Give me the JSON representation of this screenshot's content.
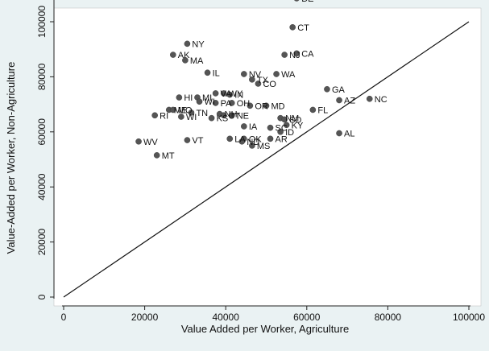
{
  "chart_data": {
    "type": "scatter",
    "title": "",
    "xlabel": "Value Added per Worker, Agriculture",
    "ylabel": "Value-Added per Worker, Non-Agriculture",
    "xlim": [
      0,
      100000
    ],
    "ylim": [
      0,
      110000
    ],
    "xticks": [
      0,
      20000,
      40000,
      60000,
      80000,
      100000
    ],
    "xtick_labels": [
      "0",
      "20000",
      "40000",
      "60000",
      "80000",
      "100000"
    ],
    "yticks": [
      0,
      20000,
      40000,
      60000,
      80000,
      100000
    ],
    "ytick_labels": [
      "0",
      "20000",
      "40000",
      "60000",
      "80000",
      "100000"
    ],
    "grid": false,
    "reference_line": {
      "from": [
        0,
        0
      ],
      "to": [
        100000,
        100000
      ]
    },
    "points": [
      {
        "label": "DE",
        "x": 57500,
        "y": 108500
      },
      {
        "label": "CT",
        "x": 56500,
        "y": 98000
      },
      {
        "label": "NY",
        "x": 30500,
        "y": 92000
      },
      {
        "label": "AK",
        "x": 27000,
        "y": 88000
      },
      {
        "label": "MA",
        "x": 30000,
        "y": 86000
      },
      {
        "label": "NJ",
        "x": 54500,
        "y": 88000
      },
      {
        "label": "CA",
        "x": 57500,
        "y": 88500
      },
      {
        "label": "IL",
        "x": 35500,
        "y": 81500
      },
      {
        "label": "NV",
        "x": 44500,
        "y": 81000
      },
      {
        "label": "WA",
        "x": 52500,
        "y": 81000
      },
      {
        "label": "TX",
        "x": 46500,
        "y": 79000
      },
      {
        "label": "CO",
        "x": 48000,
        "y": 77500
      },
      {
        "label": "GA",
        "x": 65000,
        "y": 75500
      },
      {
        "label": "HI",
        "x": 28500,
        "y": 72500
      },
      {
        "label": "MI",
        "x": 33000,
        "y": 72500
      },
      {
        "label": "VA",
        "x": 37500,
        "y": 74000
      },
      {
        "label": "WY",
        "x": 39500,
        "y": 74000
      },
      {
        "label": "IN",
        "x": 41000,
        "y": 73500
      },
      {
        "label": "WI",
        "x": 33500,
        "y": 71000
      },
      {
        "label": "PA",
        "x": 37500,
        "y": 70500
      },
      {
        "label": "OH",
        "x": 41500,
        "y": 70500
      },
      {
        "label": "OR",
        "x": 46000,
        "y": 69500
      },
      {
        "label": "MD",
        "x": 50000,
        "y": 69500
      },
      {
        "label": "AZ",
        "x": 68000,
        "y": 71500
      },
      {
        "label": "NC",
        "x": 75500,
        "y": 72000
      },
      {
        "label": "FL",
        "x": 61500,
        "y": 68000
      },
      {
        "label": "ME",
        "x": 26000,
        "y": 68000
      },
      {
        "label": "MO",
        "x": 27000,
        "y": 68000
      },
      {
        "label": "RI",
        "x": 22500,
        "y": 66000
      },
      {
        "label": "TN",
        "x": 31500,
        "y": 67000
      },
      {
        "label": "WI",
        "x": 29000,
        "y": 65500
      },
      {
        "label": "KS",
        "x": 36500,
        "y": 65000
      },
      {
        "label": "NH",
        "x": 38500,
        "y": 66500
      },
      {
        "label": "UT",
        "x": 39500,
        "y": 66000
      },
      {
        "label": "NE",
        "x": 41500,
        "y": 66000
      },
      {
        "label": "NM",
        "x": 53500,
        "y": 65000
      },
      {
        "label": "SD",
        "x": 54500,
        "y": 64500
      },
      {
        "label": "KY",
        "x": 55000,
        "y": 62500
      },
      {
        "label": "SC",
        "x": 51000,
        "y": 61500
      },
      {
        "label": "ID",
        "x": 53500,
        "y": 60000
      },
      {
        "label": "IA",
        "x": 44500,
        "y": 62000
      },
      {
        "label": "AL",
        "x": 68000,
        "y": 59500
      },
      {
        "label": "WV",
        "x": 18500,
        "y": 56500
      },
      {
        "label": "VT",
        "x": 30500,
        "y": 57000
      },
      {
        "label": "LA",
        "x": 41000,
        "y": 57500
      },
      {
        "label": "OK",
        "x": 44500,
        "y": 57500
      },
      {
        "label": "ND",
        "x": 44000,
        "y": 56500
      },
      {
        "label": "AR",
        "x": 51000,
        "y": 57500
      },
      {
        "label": "MS",
        "x": 46500,
        "y": 55000
      },
      {
        "label": "MT",
        "x": 23000,
        "y": 51500
      }
    ]
  }
}
